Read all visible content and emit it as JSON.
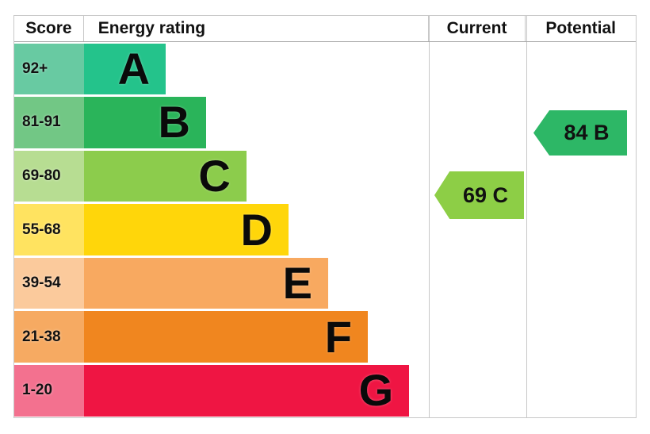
{
  "header": {
    "score": "Score",
    "energy_rating": "Energy rating",
    "current": "Current",
    "potential": "Potential"
  },
  "bands": [
    {
      "score_range": "92+",
      "letter": "A",
      "bar_color": "#24c38b",
      "score_color": "#68caa2",
      "bar_width_pct": 23.7
    },
    {
      "score_range": "81-91",
      "letter": "B",
      "bar_color": "#2ab45a",
      "score_color": "#72c785",
      "bar_width_pct": 35.4
    },
    {
      "score_range": "69-80",
      "letter": "C",
      "bar_color": "#8ccc4c",
      "score_color": "#b7dd92",
      "bar_width_pct": 47.1
    },
    {
      "score_range": "55-68",
      "letter": "D",
      "bar_color": "#ffd60a",
      "score_color": "#ffe360",
      "bar_width_pct": 59.3
    },
    {
      "score_range": "39-54",
      "letter": "E",
      "bar_color": "#f8a960",
      "score_color": "#fbca9c",
      "bar_width_pct": 70.8
    },
    {
      "score_range": "21-38",
      "letter": "F",
      "bar_color": "#f0861f",
      "score_color": "#f6aa62",
      "bar_width_pct": 82.3
    },
    {
      "score_range": "1-20",
      "letter": "G",
      "bar_color": "#ef1543",
      "score_color": "#f3718f",
      "bar_width_pct": 94.3
    }
  ],
  "current_marker": {
    "label": "69 C",
    "value": 69,
    "band": "C",
    "color": "#8dce46"
  },
  "potential_marker": {
    "label": "84 B",
    "value": 84,
    "band": "B",
    "color": "#2db766"
  },
  "chart_data": {
    "type": "bar",
    "title": "Energy efficiency rating (EPC)",
    "categories": [
      "A",
      "B",
      "C",
      "D",
      "E",
      "F",
      "G"
    ],
    "score_ranges": [
      "92+",
      "81-91",
      "69-80",
      "55-68",
      "39-54",
      "21-38",
      "1-20"
    ],
    "bar_width_pct": [
      23.7,
      35.4,
      47.1,
      59.3,
      70.8,
      82.3,
      94.3
    ],
    "columns": [
      "Score",
      "Energy rating",
      "Current",
      "Potential"
    ],
    "markers": {
      "current": {
        "score": 69,
        "band": "C"
      },
      "potential": {
        "score": 84,
        "band": "B"
      }
    },
    "legend_position": "none",
    "grid": false
  }
}
